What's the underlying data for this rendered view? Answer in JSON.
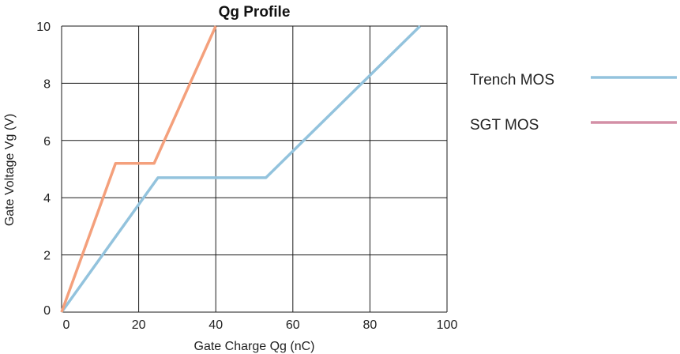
{
  "chart_data": {
    "type": "line",
    "title": "Qg Profile",
    "xlabel": "Gate Charge Qg (nC)",
    "ylabel": "Gate Voltage Vg (V)",
    "xlim": [
      0,
      100
    ],
    "ylim": [
      0,
      10
    ],
    "x_ticks": [
      "0",
      "20",
      "40",
      "60",
      "80",
      "100"
    ],
    "y_ticks": [
      "0",
      "2",
      "4",
      "6",
      "8",
      "10"
    ],
    "grid": true,
    "legend_position": "right",
    "series": [
      {
        "name": "Trench MOS",
        "color": "#93c3dd",
        "x": [
          0,
          25,
          53,
          93
        ],
        "y": [
          0,
          4.7,
          4.7,
          10
        ]
      },
      {
        "name": "SGT  MOS",
        "color": "#f4a07c",
        "legend_color": "#d38fa6",
        "x": [
          0,
          14,
          24,
          40
        ],
        "y": [
          0,
          5.2,
          5.2,
          10
        ]
      }
    ]
  }
}
